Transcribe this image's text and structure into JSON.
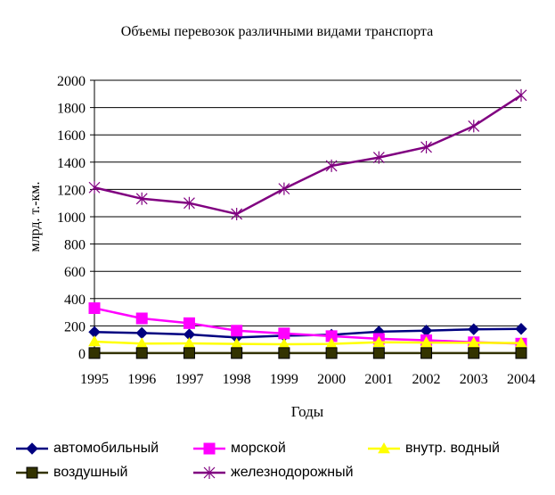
{
  "chart_data": {
    "type": "line",
    "title": "Объемы перевозок различными видами транспорта",
    "xlabel": "Годы",
    "ylabel": "млрд. т.-км.",
    "ylim": [
      0,
      2000
    ],
    "yticks": [
      0,
      200,
      400,
      600,
      800,
      1000,
      1200,
      1400,
      1600,
      1800,
      2000
    ],
    "grid": true,
    "legend_position": "bottom",
    "x": [
      "1995",
      "1996",
      "1997",
      "1998",
      "1999",
      "2000",
      "2001",
      "2002",
      "2003",
      "2004"
    ],
    "series": [
      {
        "name": "автомобильный",
        "color": "#000080",
        "marker": "diamond",
        "values": [
          155,
          148,
          137,
          115,
          128,
          135,
          158,
          165,
          175,
          178
        ]
      },
      {
        "name": "морской",
        "color": "#FF00FF",
        "marker": "square",
        "values": [
          330,
          255,
          220,
          165,
          145,
          125,
          105,
          95,
          80,
          70
        ]
      },
      {
        "name": "внутр. водный",
        "color": "#FFFF00",
        "marker": "triangle",
        "values": [
          85,
          70,
          72,
          68,
          65,
          68,
          80,
          78,
          76,
          74
        ]
      },
      {
        "name": "воздушный",
        "color": "#333300",
        "marker": "square",
        "values": [
          1,
          1,
          1,
          1,
          1,
          1,
          1,
          1,
          1,
          1
        ]
      },
      {
        "name": "железнодорожный",
        "color": "#800080",
        "marker": "star",
        "values": [
          1214,
          1132,
          1100,
          1020,
          1205,
          1373,
          1434,
          1510,
          1664,
          1890
        ]
      }
    ]
  }
}
